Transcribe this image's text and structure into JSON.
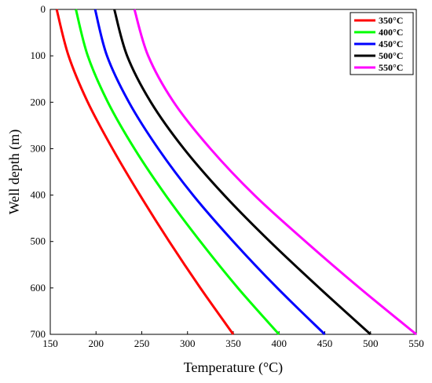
{
  "chart_data": {
    "type": "line",
    "xlabel": "Temperature (°C)",
    "ylabel": "Well depth  (m)",
    "xlim": [
      150,
      550
    ],
    "ylim": [
      0,
      700
    ],
    "y_inverted": true,
    "x_ticks": [
      "150",
      "200",
      "250",
      "300",
      "350",
      "400",
      "450",
      "500",
      "550"
    ],
    "y_ticks": [
      "0",
      "100",
      "200",
      "300",
      "400",
      "500",
      "600",
      "700"
    ],
    "grid": false,
    "legend_position": "top-right",
    "depth": [
      0,
      100,
      200,
      300,
      400,
      500,
      600,
      700
    ],
    "series": [
      {
        "name": "350°C",
        "color": "#ff0000",
        "temperature": [
          157,
          170,
          191,
          218,
          248,
          280,
          314,
          350
        ]
      },
      {
        "name": "400°C",
        "color": "#00ff00",
        "temperature": [
          178,
          191,
          213,
          242,
          276,
          314,
          355,
          400
        ]
      },
      {
        "name": "450°C",
        "color": "#0000ff",
        "temperature": [
          199,
          212,
          236,
          268,
          306,
          350,
          398,
          450
        ]
      },
      {
        "name": "500°C",
        "color": "#000000",
        "temperature": [
          220,
          234,
          260,
          296,
          340,
          390,
          444,
          500
        ]
      },
      {
        "name": "550°C",
        "color": "#ff00ff",
        "temperature": [
          242,
          257,
          285,
          325,
          373,
          429,
          488,
          550
        ]
      }
    ]
  }
}
